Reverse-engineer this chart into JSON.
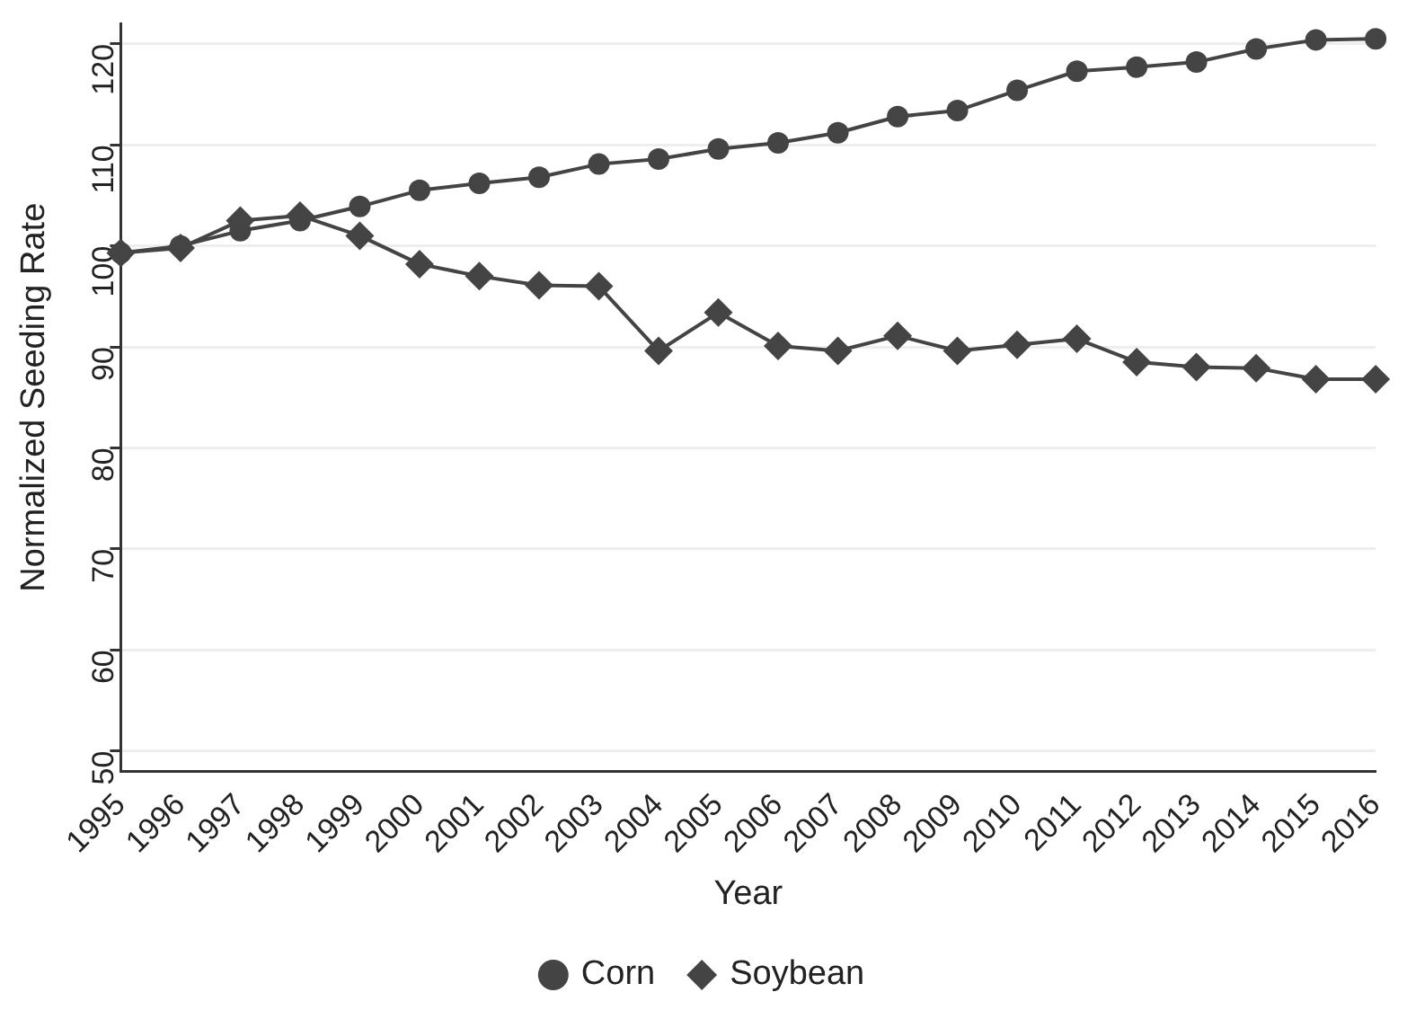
{
  "chart_data": {
    "type": "line",
    "xlabel": "Year",
    "ylabel": "Normalized Seeding Rate",
    "categories": [
      "1995",
      "1996",
      "1997",
      "1998",
      "1999",
      "2000",
      "2001",
      "2002",
      "2003",
      "2004",
      "2005",
      "2006",
      "2007",
      "2008",
      "2009",
      "2010",
      "2011",
      "2012",
      "2013",
      "2014",
      "2015",
      "2016"
    ],
    "series": [
      {
        "name": "Corn",
        "color": "#444444",
        "marker": "circle",
        "values": [
          99.3,
          100,
          101.5,
          102.5,
          103.9,
          105.5,
          106.2,
          106.8,
          108.1,
          108.6,
          109.6,
          110.2,
          111.2,
          112.8,
          113.4,
          115.4,
          117.3,
          117.7,
          118.2,
          119.5,
          120.4,
          120.5
        ]
      },
      {
        "name": "Soybean",
        "color": "#444444",
        "marker": "diamond",
        "values": [
          99.3,
          99.8,
          102.5,
          103,
          101,
          98.2,
          97,
          96.1,
          96,
          89.6,
          93.4,
          90.1,
          89.6,
          91.1,
          89.6,
          90.2,
          90.8,
          88.5,
          88,
          87.9,
          86.8,
          86.8
        ]
      }
    ],
    "ylim": [
      48,
      122
    ],
    "yticks": [
      50,
      60,
      70,
      80,
      90,
      100,
      110,
      120
    ],
    "grid": "y",
    "legend": "bottom",
    "line_style": "solid"
  }
}
